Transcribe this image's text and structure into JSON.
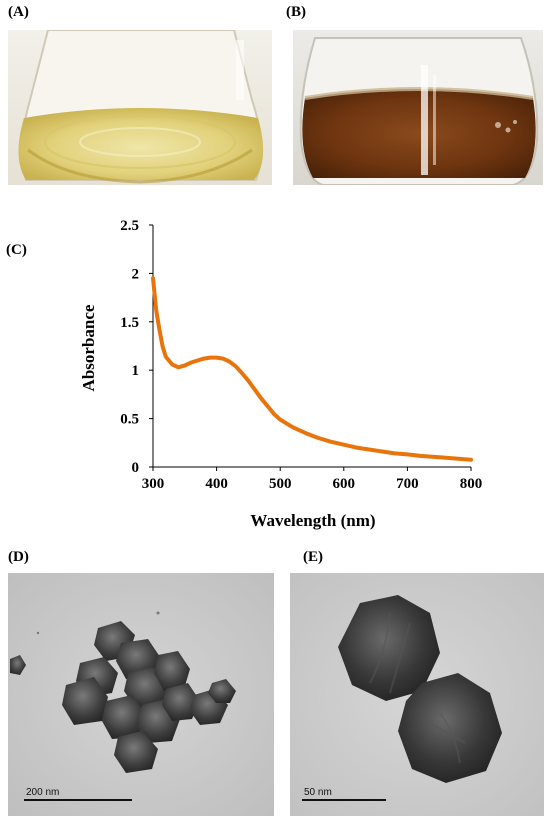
{
  "panels": {
    "a_label": "(A)",
    "b_label": "(B)",
    "c_label": "(C)",
    "d_label": "(D)",
    "e_label": "(E)"
  },
  "scale_bars": {
    "d": "200 nm",
    "e": "50 nm"
  },
  "chart_data": {
    "type": "line",
    "title": "",
    "xlabel": "Wavelength (nm)",
    "ylabel": "Absorbance",
    "xlim": [
      300,
      800
    ],
    "ylim": [
      0,
      2.5
    ],
    "x_ticks": [
      "300",
      "400",
      "500",
      "600",
      "700",
      "800"
    ],
    "y_ticks": [
      "0",
      "0.5",
      "1",
      "1.5",
      "2",
      "2.5"
    ],
    "grid": false,
    "color": "#e8740c",
    "series": [
      {
        "x": [
          300,
          305,
          310,
          315,
          320,
          330,
          340,
          350,
          360,
          370,
          380,
          390,
          400,
          410,
          420,
          430,
          440,
          450,
          460,
          470,
          480,
          490,
          500,
          520,
          540,
          560,
          580,
          600,
          620,
          650,
          680,
          700,
          720,
          750,
          780,
          800
        ],
        "values": [
          1.95,
          1.62,
          1.42,
          1.25,
          1.14,
          1.06,
          1.03,
          1.05,
          1.08,
          1.1,
          1.12,
          1.13,
          1.13,
          1.12,
          1.09,
          1.04,
          0.97,
          0.89,
          0.8,
          0.71,
          0.63,
          0.55,
          0.49,
          0.41,
          0.35,
          0.3,
          0.26,
          0.23,
          0.2,
          0.17,
          0.14,
          0.13,
          0.115,
          0.1,
          0.085,
          0.075
        ]
      }
    ]
  }
}
